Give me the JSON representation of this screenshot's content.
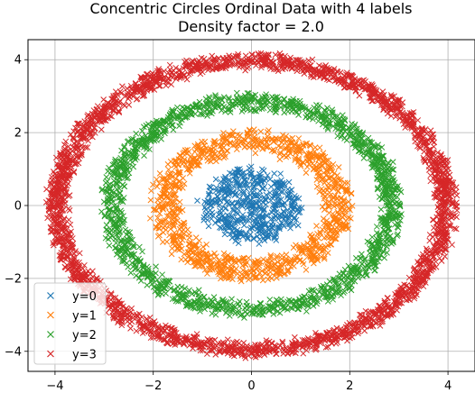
{
  "chart_data": {
    "type": "scatter",
    "title": "Concentric Circles Ordinal Data with 4 labels",
    "subtitle": "Density factor = 2.0",
    "xlabel": "",
    "ylabel": "",
    "xlim": [
      -4.55,
      4.55
    ],
    "ylim": [
      -4.55,
      4.55
    ],
    "xticks": [
      -4,
      -2,
      0,
      2,
      4
    ],
    "yticks": [
      -4,
      -2,
      0,
      2,
      4
    ],
    "xtick_labels": [
      "−4",
      "−2",
      "0",
      "2",
      "4"
    ],
    "ytick_labels": [
      "−4",
      "−2",
      "0",
      "2",
      "4"
    ],
    "grid": true,
    "marker": "x",
    "legend_position": "bottom-left",
    "series": [
      {
        "name": "y=0",
        "color": "#1f77b4",
        "radius_range": [
          0,
          1.0
        ],
        "approx_points": 500
      },
      {
        "name": "y=1",
        "color": "#ff7f0e",
        "radius_range": [
          1.0,
          2.0
        ],
        "approx_points": 1000
      },
      {
        "name": "y=2",
        "color": "#2ca02c",
        "radius_range": [
          2.0,
          3.0
        ],
        "approx_points": 1500
      },
      {
        "name": "y=3",
        "color": "#d62728",
        "radius_range": [
          3.0,
          4.1
        ],
        "approx_points": 2500
      }
    ]
  }
}
